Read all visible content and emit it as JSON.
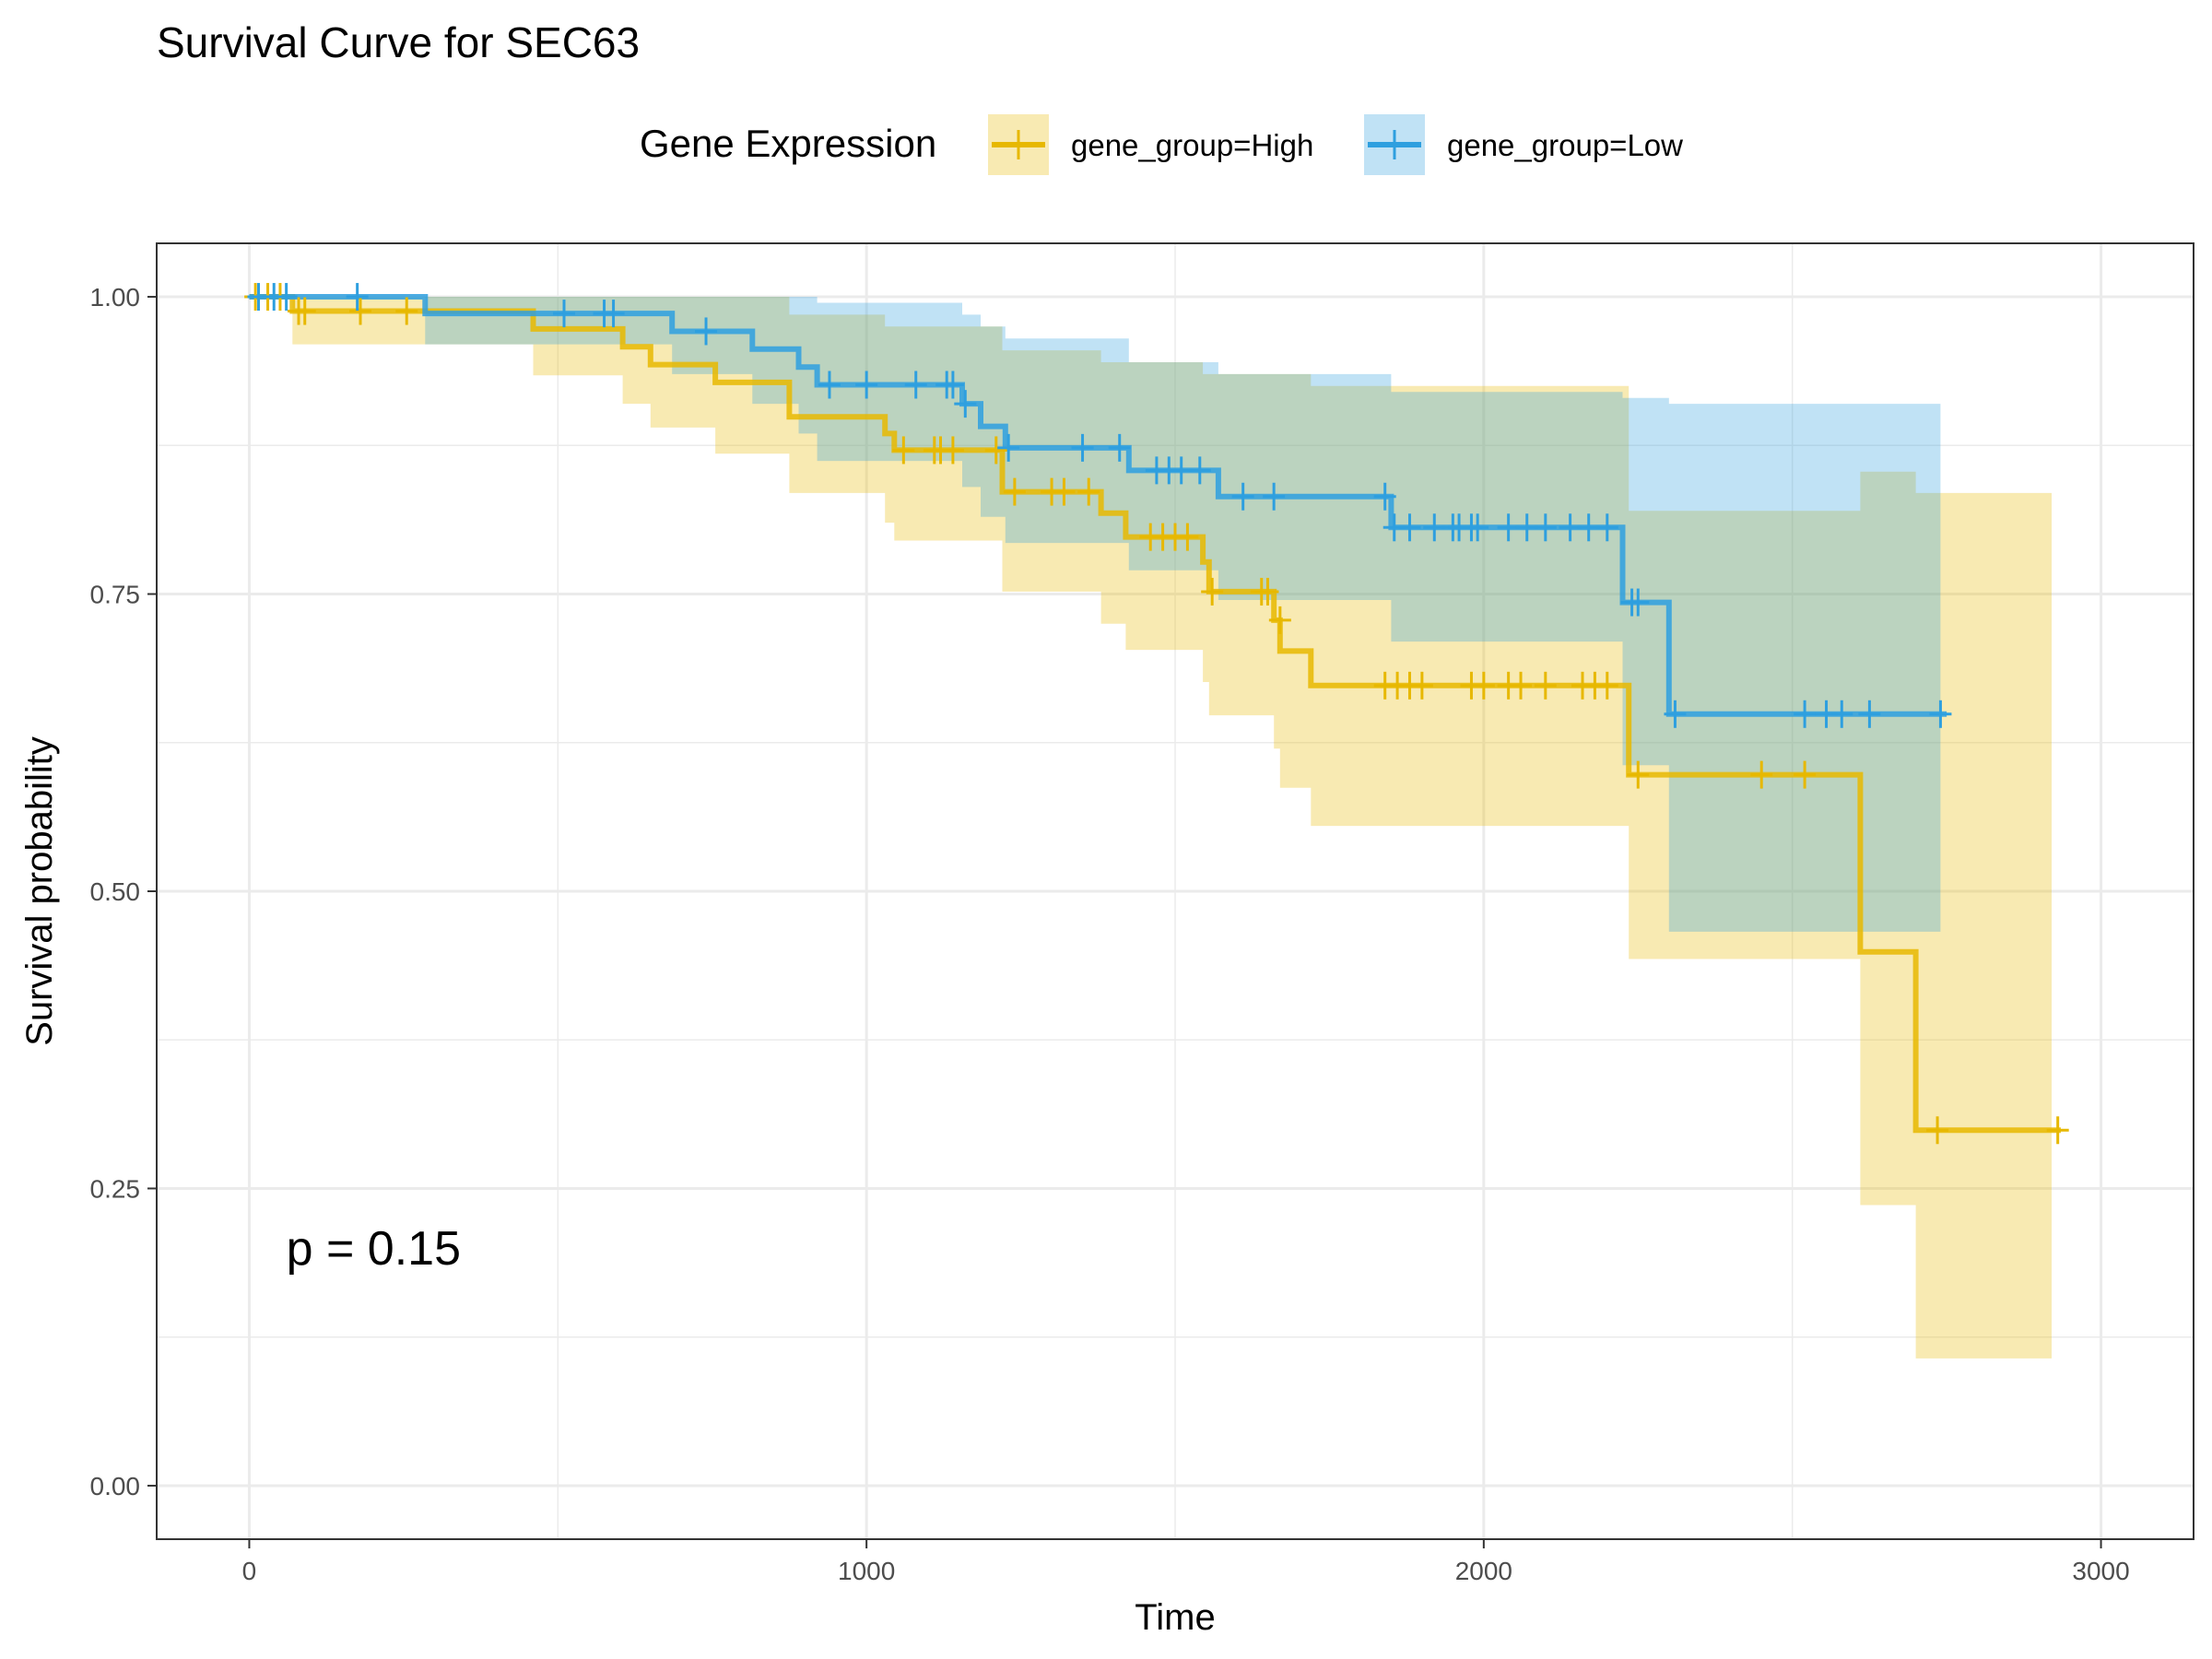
{
  "chart_data": {
    "type": "line",
    "subtype": "kaplan-meier",
    "title": "Survival Curve for SEC63",
    "xlabel": "Time",
    "ylabel": "Survival probability",
    "xlim": [
      -150,
      3150
    ],
    "ylim": [
      -0.045,
      1.045
    ],
    "x_ticks": [
      0,
      1000,
      2000,
      3000
    ],
    "x_tick_labels": [
      "0",
      "1000",
      "2000",
      "3000"
    ],
    "y_ticks": [
      0,
      0.25,
      0.5,
      0.75,
      1.0
    ],
    "y_tick_labels": [
      "0.00",
      "0.25",
      "0.50",
      "0.75",
      "1.00"
    ],
    "grid": true,
    "legend": {
      "title": "Gene Expression",
      "position": "top"
    },
    "annotation": {
      "text": "p = 0.15",
      "x": 60,
      "y": 0.2
    },
    "series": [
      {
        "name": "gene_group=High",
        "color": "#E7B800",
        "steps": [
          [
            0,
            1.0
          ],
          [
            70,
            0.988
          ],
          [
            460,
            0.973
          ],
          [
            605,
            0.958
          ],
          [
            650,
            0.943
          ],
          [
            755,
            0.928
          ],
          [
            875,
            0.899
          ],
          [
            1030,
            0.885
          ],
          [
            1045,
            0.871
          ],
          [
            1220,
            0.836
          ],
          [
            1380,
            0.818
          ],
          [
            1420,
            0.798
          ],
          [
            1545,
            0.777
          ],
          [
            1555,
            0.752
          ],
          [
            1660,
            0.728
          ],
          [
            1670,
            0.702
          ],
          [
            1720,
            0.673
          ],
          [
            2235,
            0.598
          ],
          [
            2610,
            0.449
          ],
          [
            2700,
            0.299
          ],
          [
            2935,
            0.299
          ]
        ],
        "ci_upper": [
          [
            0,
            1.0
          ],
          [
            70,
            1.0
          ],
          [
            460,
            1.0
          ],
          [
            760,
            1.0
          ],
          [
            875,
            0.985
          ],
          [
            1030,
            0.975
          ],
          [
            1220,
            0.955
          ],
          [
            1380,
            0.945
          ],
          [
            1545,
            0.935
          ],
          [
            1720,
            0.925
          ],
          [
            2235,
            0.82
          ],
          [
            2610,
            0.853
          ],
          [
            2700,
            0.835
          ],
          [
            2920,
            0.835
          ]
        ],
        "ci_lower": [
          [
            0,
            1.0
          ],
          [
            70,
            0.96
          ],
          [
            460,
            0.934
          ],
          [
            605,
            0.91
          ],
          [
            650,
            0.89
          ],
          [
            755,
            0.868
          ],
          [
            875,
            0.835
          ],
          [
            1030,
            0.81
          ],
          [
            1045,
            0.795
          ],
          [
            1220,
            0.752
          ],
          [
            1380,
            0.725
          ],
          [
            1420,
            0.703
          ],
          [
            1545,
            0.676
          ],
          [
            1555,
            0.648
          ],
          [
            1660,
            0.62
          ],
          [
            1670,
            0.587
          ],
          [
            1720,
            0.555
          ],
          [
            2235,
            0.443
          ],
          [
            2610,
            0.236
          ],
          [
            2700,
            0.107
          ],
          [
            2920,
            0.107
          ]
        ],
        "censors": [
          [
            10,
            1.0
          ],
          [
            30,
            1.0
          ],
          [
            50,
            1.0
          ],
          [
            80,
            0.988
          ],
          [
            90,
            0.988
          ],
          [
            180,
            0.988
          ],
          [
            255,
            0.988
          ],
          [
            1060,
            0.871
          ],
          [
            1110,
            0.871
          ],
          [
            1120,
            0.871
          ],
          [
            1140,
            0.871
          ],
          [
            1210,
            0.871
          ],
          [
            1240,
            0.836
          ],
          [
            1300,
            0.836
          ],
          [
            1320,
            0.836
          ],
          [
            1360,
            0.836
          ],
          [
            1460,
            0.798
          ],
          [
            1480,
            0.798
          ],
          [
            1500,
            0.798
          ],
          [
            1520,
            0.798
          ],
          [
            1560,
            0.752
          ],
          [
            1640,
            0.752
          ],
          [
            1650,
            0.752
          ],
          [
            1670,
            0.728
          ],
          [
            1840,
            0.673
          ],
          [
            1860,
            0.673
          ],
          [
            1880,
            0.673
          ],
          [
            1900,
            0.673
          ],
          [
            1980,
            0.673
          ],
          [
            2000,
            0.673
          ],
          [
            2040,
            0.673
          ],
          [
            2060,
            0.673
          ],
          [
            2100,
            0.673
          ],
          [
            2160,
            0.673
          ],
          [
            2180,
            0.673
          ],
          [
            2200,
            0.673
          ],
          [
            2250,
            0.598
          ],
          [
            2450,
            0.598
          ],
          [
            2520,
            0.598
          ],
          [
            2735,
            0.299
          ],
          [
            2930,
            0.299
          ]
        ]
      },
      {
        "name": "gene_group=Low",
        "color": "#2E9FDF",
        "steps": [
          [
            0,
            1.0
          ],
          [
            285,
            0.986
          ],
          [
            685,
            0.971
          ],
          [
            815,
            0.956
          ],
          [
            890,
            0.941
          ],
          [
            920,
            0.926
          ],
          [
            1155,
            0.91
          ],
          [
            1185,
            0.891
          ],
          [
            1225,
            0.873
          ],
          [
            1425,
            0.854
          ],
          [
            1570,
            0.832
          ],
          [
            1850,
            0.806
          ],
          [
            2225,
            0.743
          ],
          [
            2300,
            0.649
          ],
          [
            2750,
            0.649
          ]
        ],
        "ci_upper": [
          [
            0,
            1.0
          ],
          [
            760,
            1.0
          ],
          [
            920,
            0.995
          ],
          [
            1155,
            0.985
          ],
          [
            1185,
            0.975
          ],
          [
            1225,
            0.965
          ],
          [
            1425,
            0.945
          ],
          [
            1570,
            0.935
          ],
          [
            1850,
            0.92
          ],
          [
            2225,
            0.915
          ],
          [
            2300,
            0.91
          ],
          [
            2740,
            0.91
          ]
        ],
        "ci_lower": [
          [
            0,
            1.0
          ],
          [
            285,
            0.96
          ],
          [
            685,
            0.935
          ],
          [
            815,
            0.91
          ],
          [
            890,
            0.885
          ],
          [
            920,
            0.862
          ],
          [
            1155,
            0.84
          ],
          [
            1185,
            0.815
          ],
          [
            1225,
            0.793
          ],
          [
            1425,
            0.77
          ],
          [
            1570,
            0.745
          ],
          [
            1850,
            0.71
          ],
          [
            2225,
            0.606
          ],
          [
            2300,
            0.466
          ],
          [
            2740,
            0.466
          ]
        ],
        "censors": [
          [
            15,
            1.0
          ],
          [
            40,
            1.0
          ],
          [
            60,
            1.0
          ],
          [
            175,
            1.0
          ],
          [
            510,
            0.986
          ],
          [
            575,
            0.986
          ],
          [
            590,
            0.986
          ],
          [
            740,
            0.971
          ],
          [
            940,
            0.926
          ],
          [
            1000,
            0.926
          ],
          [
            1080,
            0.926
          ],
          [
            1130,
            0.926
          ],
          [
            1140,
            0.926
          ],
          [
            1160,
            0.91
          ],
          [
            1230,
            0.873
          ],
          [
            1350,
            0.873
          ],
          [
            1410,
            0.873
          ],
          [
            1470,
            0.854
          ],
          [
            1490,
            0.854
          ],
          [
            1510,
            0.854
          ],
          [
            1540,
            0.854
          ],
          [
            1610,
            0.832
          ],
          [
            1660,
            0.832
          ],
          [
            1840,
            0.832
          ],
          [
            1855,
            0.806
          ],
          [
            1880,
            0.806
          ],
          [
            1920,
            0.806
          ],
          [
            1950,
            0.806
          ],
          [
            1960,
            0.806
          ],
          [
            1980,
            0.806
          ],
          [
            1990,
            0.806
          ],
          [
            2040,
            0.806
          ],
          [
            2070,
            0.806
          ],
          [
            2100,
            0.806
          ],
          [
            2140,
            0.806
          ],
          [
            2170,
            0.806
          ],
          [
            2200,
            0.806
          ],
          [
            2240,
            0.743
          ],
          [
            2250,
            0.743
          ],
          [
            2310,
            0.649
          ],
          [
            2520,
            0.649
          ],
          [
            2555,
            0.649
          ],
          [
            2580,
            0.649
          ],
          [
            2625,
            0.649
          ],
          [
            2740,
            0.649
          ]
        ]
      }
    ]
  }
}
